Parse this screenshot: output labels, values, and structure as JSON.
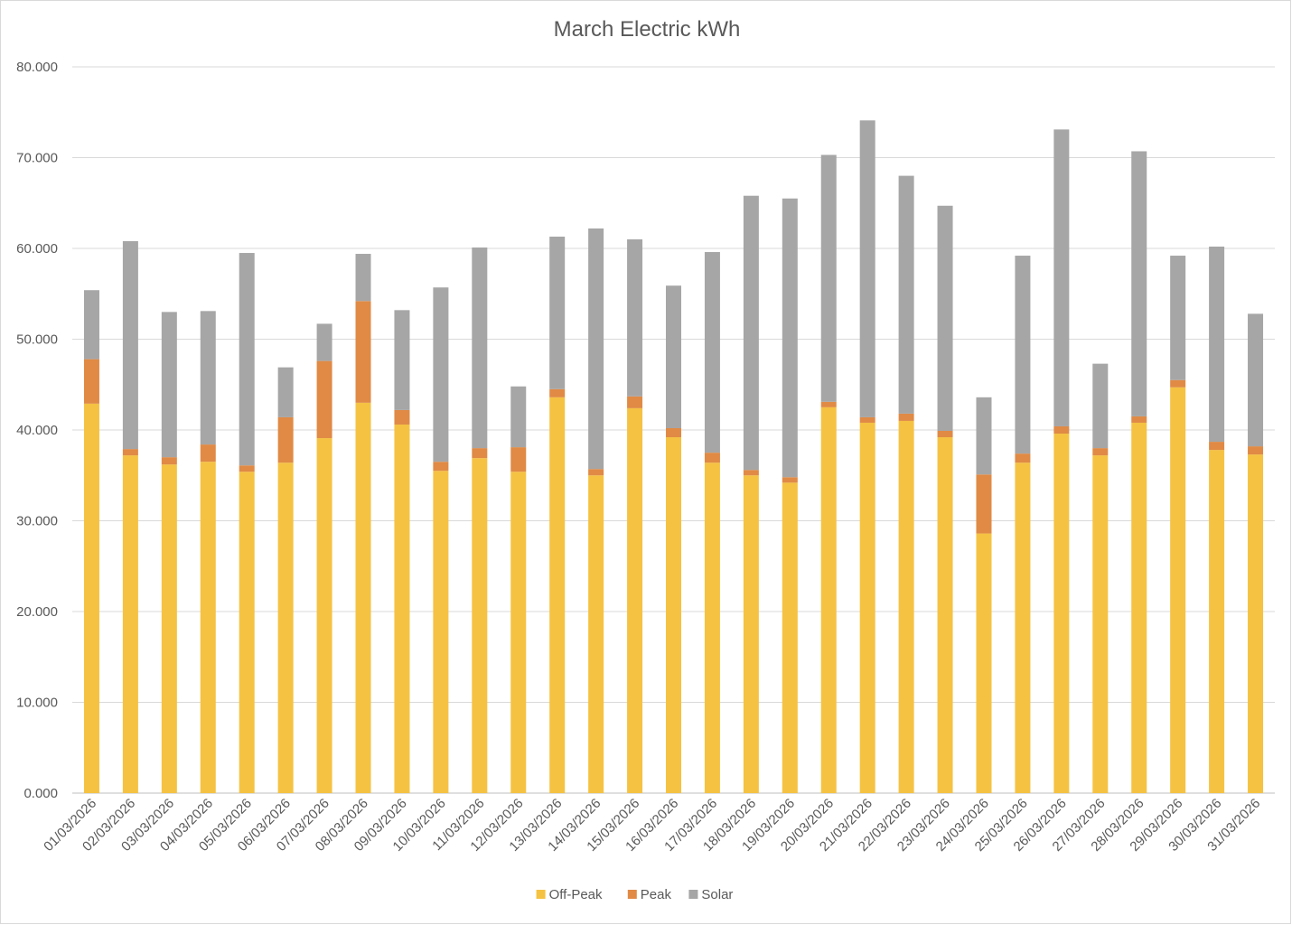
{
  "chart_data": {
    "type": "bar",
    "stacked": true,
    "title": "March Electric kWh",
    "xlabel": "",
    "ylabel": "",
    "ylim": [
      0,
      80
    ],
    "yticks": [
      "0.000",
      "10.000",
      "20.000",
      "30.000",
      "40.000",
      "50.000",
      "60.000",
      "70.000",
      "80.000"
    ],
    "grid": true,
    "legend_position": "bottom",
    "categories": [
      "01/03/2026",
      "02/03/2026",
      "03/03/2026",
      "04/03/2026",
      "05/03/2026",
      "06/03/2026",
      "07/03/2026",
      "08/03/2026",
      "09/03/2026",
      "10/03/2026",
      "11/03/2026",
      "12/03/2026",
      "13/03/2026",
      "14/03/2026",
      "15/03/2026",
      "16/03/2026",
      "17/03/2026",
      "18/03/2026",
      "19/03/2026",
      "20/03/2026",
      "21/03/2026",
      "22/03/2026",
      "23/03/2026",
      "24/03/2026",
      "25/03/2026",
      "26/03/2026",
      "27/03/2026",
      "28/03/2026",
      "29/03/2026",
      "30/03/2026",
      "31/03/2026"
    ],
    "series": [
      {
        "name": "Off-Peak",
        "color": "#f5c242",
        "values": [
          42.9,
          37.2,
          36.2,
          36.5,
          35.4,
          36.4,
          39.1,
          43.0,
          40.6,
          35.5,
          36.9,
          35.4,
          43.6,
          35.0,
          42.4,
          39.2,
          36.4,
          35.0,
          34.2,
          42.5,
          40.8,
          41.0,
          39.2,
          28.6,
          36.4,
          39.6,
          37.2,
          40.8,
          44.7,
          37.8,
          37.3
        ]
      },
      {
        "name": "Peak",
        "color": "#e08a45",
        "values": [
          4.9,
          0.7,
          0.8,
          1.9,
          0.7,
          5.0,
          8.5,
          11.2,
          1.6,
          1.0,
          1.1,
          2.7,
          0.9,
          0.7,
          1.3,
          1.0,
          1.1,
          0.6,
          0.6,
          0.6,
          0.6,
          0.8,
          0.7,
          6.5,
          1.0,
          0.8,
          0.8,
          0.7,
          0.8,
          0.9,
          0.9
        ]
      },
      {
        "name": "Solar",
        "color": "#a6a6a6",
        "values": [
          7.6,
          22.9,
          16.0,
          14.7,
          23.4,
          5.5,
          4.1,
          5.2,
          11.0,
          19.2,
          22.1,
          6.7,
          16.8,
          26.5,
          17.3,
          15.7,
          22.1,
          30.2,
          30.7,
          27.2,
          32.7,
          26.2,
          24.8,
          8.5,
          21.8,
          32.7,
          9.3,
          29.2,
          13.7,
          21.5,
          14.6
        ]
      }
    ]
  }
}
